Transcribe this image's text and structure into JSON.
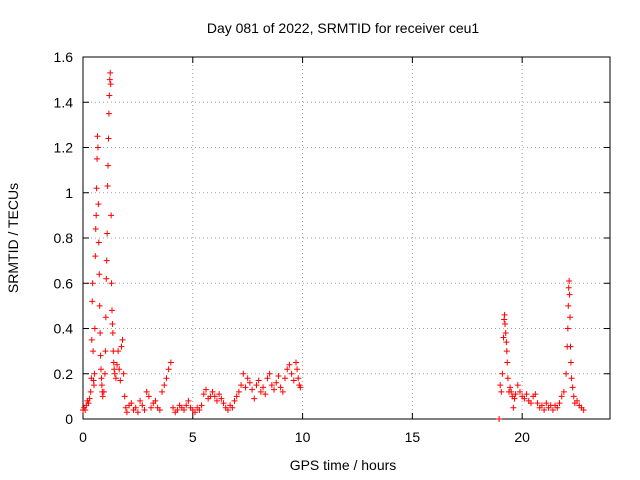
{
  "chart_data": {
    "type": "scatter",
    "title": "Day 081 of 2022, SRMTID for receiver ceu1",
    "xlabel": "GPS time / hours",
    "ylabel": "SRMTID / TECUs",
    "xlim": [
      0,
      24
    ],
    "ylim": [
      0,
      1.6
    ],
    "xticks": [
      0,
      5,
      10,
      15,
      20
    ],
    "xtick_labels": [
      "0",
      "5",
      "10",
      "15",
      "20"
    ],
    "yticks": [
      0,
      0.2,
      0.4,
      0.6,
      0.8,
      1.0,
      1.2,
      1.4,
      1.6
    ],
    "ytick_labels": [
      "0",
      "0.2",
      "0.4",
      "0.6",
      "0.8",
      "1",
      "1.2",
      "1.4",
      "1.6"
    ],
    "grid": true,
    "marker": "+",
    "color": "#ff0000",
    "series": [
      {
        "name": "ceu1",
        "points": [
          [
            0.0,
            0.04
          ],
          [
            0.05,
            0.05
          ],
          [
            0.1,
            0.04
          ],
          [
            0.15,
            0.06
          ],
          [
            0.2,
            0.08
          ],
          [
            0.25,
            0.07
          ],
          [
            0.3,
            0.09
          ],
          [
            0.35,
            0.12
          ],
          [
            0.38,
            0.18
          ],
          [
            0.4,
            0.35
          ],
          [
            0.42,
            0.52
          ],
          [
            0.44,
            0.6
          ],
          [
            0.46,
            0.3
          ],
          [
            0.48,
            0.17
          ],
          [
            0.5,
            0.15
          ],
          [
            0.52,
            0.2
          ],
          [
            0.54,
            0.4
          ],
          [
            0.56,
            0.72
          ],
          [
            0.58,
            0.84
          ],
          [
            0.6,
            0.9
          ],
          [
            0.62,
            1.02
          ],
          [
            0.64,
            1.15
          ],
          [
            0.66,
            1.25
          ],
          [
            0.68,
            1.2
          ],
          [
            0.7,
            0.95
          ],
          [
            0.72,
            0.78
          ],
          [
            0.74,
            0.64
          ],
          [
            0.76,
            0.5
          ],
          [
            0.78,
            0.38
          ],
          [
            0.8,
            0.28
          ],
          [
            0.82,
            0.22
          ],
          [
            0.84,
            0.18
          ],
          [
            0.86,
            0.15
          ],
          [
            0.88,
            0.12
          ],
          [
            0.9,
            0.1
          ],
          [
            0.95,
            0.12
          ],
          [
            1.0,
            0.2
          ],
          [
            1.02,
            0.3
          ],
          [
            1.04,
            0.45
          ],
          [
            1.06,
            0.62
          ],
          [
            1.08,
            0.7
          ],
          [
            1.1,
            0.82
          ],
          [
            1.12,
            1.03
          ],
          [
            1.14,
            1.12
          ],
          [
            1.16,
            1.24
          ],
          [
            1.18,
            1.35
          ],
          [
            1.2,
            1.43
          ],
          [
            1.22,
            1.5
          ],
          [
            1.24,
            1.53
          ],
          [
            1.26,
            1.48
          ],
          [
            1.28,
            0.9
          ],
          [
            1.3,
            0.6
          ],
          [
            1.32,
            0.48
          ],
          [
            1.34,
            0.42
          ],
          [
            1.36,
            0.38
          ],
          [
            1.38,
            0.3
          ],
          [
            1.4,
            0.25
          ],
          [
            1.42,
            0.22
          ],
          [
            1.45,
            0.2
          ],
          [
            1.5,
            0.18
          ],
          [
            1.55,
            0.24
          ],
          [
            1.6,
            0.3
          ],
          [
            1.65,
            0.22
          ],
          [
            1.7,
            0.17
          ],
          [
            1.75,
            0.32
          ],
          [
            1.8,
            0.35
          ],
          [
            1.85,
            0.2
          ],
          [
            1.9,
            0.1
          ],
          [
            1.95,
            0.05
          ],
          [
            2.0,
            0.03
          ],
          [
            2.1,
            0.06
          ],
          [
            2.2,
            0.07
          ],
          [
            2.3,
            0.04
          ],
          [
            2.4,
            0.05
          ],
          [
            2.5,
            0.03
          ],
          [
            2.6,
            0.08
          ],
          [
            2.7,
            0.06
          ],
          [
            2.8,
            0.04
          ],
          [
            2.9,
            0.12
          ],
          [
            3.0,
            0.1
          ],
          [
            3.1,
            0.05
          ],
          [
            3.2,
            0.07
          ],
          [
            3.3,
            0.08
          ],
          [
            3.4,
            0.05
          ],
          [
            3.5,
            0.04
          ],
          [
            3.6,
            0.12
          ],
          [
            3.7,
            0.15
          ],
          [
            3.8,
            0.18
          ],
          [
            3.9,
            0.22
          ],
          [
            4.0,
            0.25
          ],
          [
            4.1,
            0.05
          ],
          [
            4.2,
            0.03
          ],
          [
            4.3,
            0.04
          ],
          [
            4.4,
            0.06
          ],
          [
            4.5,
            0.05
          ],
          [
            4.6,
            0.04
          ],
          [
            4.7,
            0.06
          ],
          [
            4.8,
            0.08
          ],
          [
            4.9,
            0.05
          ],
          [
            5.0,
            0.04
          ],
          [
            5.1,
            0.03
          ],
          [
            5.2,
            0.05
          ],
          [
            5.3,
            0.04
          ],
          [
            5.4,
            0.06
          ],
          [
            5.5,
            0.11
          ],
          [
            5.6,
            0.13
          ],
          [
            5.7,
            0.09
          ],
          [
            5.8,
            0.1
          ],
          [
            5.9,
            0.12
          ],
          [
            6.0,
            0.1
          ],
          [
            6.1,
            0.08
          ],
          [
            6.2,
            0.11
          ],
          [
            6.3,
            0.09
          ],
          [
            6.4,
            0.07
          ],
          [
            6.5,
            0.05
          ],
          [
            6.6,
            0.04
          ],
          [
            6.7,
            0.06
          ],
          [
            6.8,
            0.05
          ],
          [
            6.9,
            0.08
          ],
          [
            7.0,
            0.1
          ],
          [
            7.1,
            0.12
          ],
          [
            7.2,
            0.15
          ],
          [
            7.3,
            0.2
          ],
          [
            7.4,
            0.14
          ],
          [
            7.5,
            0.18
          ],
          [
            7.6,
            0.16
          ],
          [
            7.7,
            0.13
          ],
          [
            7.8,
            0.09
          ],
          [
            7.9,
            0.15
          ],
          [
            8.0,
            0.17
          ],
          [
            8.1,
            0.12
          ],
          [
            8.2,
            0.14
          ],
          [
            8.3,
            0.11
          ],
          [
            8.4,
            0.18
          ],
          [
            8.5,
            0.2
          ],
          [
            8.6,
            0.15
          ],
          [
            8.7,
            0.13
          ],
          [
            8.8,
            0.16
          ],
          [
            8.9,
            0.19
          ],
          [
            9.0,
            0.14
          ],
          [
            9.1,
            0.12
          ],
          [
            9.2,
            0.18
          ],
          [
            9.3,
            0.22
          ],
          [
            9.4,
            0.24
          ],
          [
            9.5,
            0.2
          ],
          [
            9.6,
            0.17
          ],
          [
            9.7,
            0.25
          ],
          [
            9.75,
            0.22
          ],
          [
            9.8,
            0.18
          ],
          [
            9.85,
            0.15
          ],
          [
            9.9,
            0.14
          ],
          [
            18.95,
            0.0
          ],
          [
            19.0,
            0.15
          ],
          [
            19.05,
            0.12
          ],
          [
            19.1,
            0.2
          ],
          [
            19.15,
            0.36
          ],
          [
            19.18,
            0.44
          ],
          [
            19.2,
            0.46
          ],
          [
            19.22,
            0.42
          ],
          [
            19.25,
            0.38
          ],
          [
            19.28,
            0.34
          ],
          [
            19.3,
            0.3
          ],
          [
            19.32,
            0.25
          ],
          [
            19.35,
            0.18
          ],
          [
            19.4,
            0.12
          ],
          [
            19.45,
            0.14
          ],
          [
            19.5,
            0.12
          ],
          [
            19.55,
            0.1
          ],
          [
            19.6,
            0.05
          ],
          [
            19.65,
            0.09
          ],
          [
            19.7,
            0.11
          ],
          [
            19.8,
            0.15
          ],
          [
            19.9,
            0.12
          ],
          [
            20.0,
            0.1
          ],
          [
            20.1,
            0.09
          ],
          [
            20.2,
            0.11
          ],
          [
            20.3,
            0.08
          ],
          [
            20.4,
            0.07
          ],
          [
            20.5,
            0.1
          ],
          [
            20.6,
            0.11
          ],
          [
            20.7,
            0.07
          ],
          [
            20.8,
            0.05
          ],
          [
            20.9,
            0.06
          ],
          [
            21.0,
            0.04
          ],
          [
            21.1,
            0.07
          ],
          [
            21.2,
            0.05
          ],
          [
            21.3,
            0.06
          ],
          [
            21.4,
            0.04
          ],
          [
            21.5,
            0.06
          ],
          [
            21.6,
            0.05
          ],
          [
            21.7,
            0.07
          ],
          [
            21.8,
            0.1
          ],
          [
            21.9,
            0.12
          ],
          [
            22.0,
            0.2
          ],
          [
            22.05,
            0.32
          ],
          [
            22.08,
            0.4
          ],
          [
            22.1,
            0.5
          ],
          [
            22.12,
            0.58
          ],
          [
            22.14,
            0.61
          ],
          [
            22.16,
            0.55
          ],
          [
            22.18,
            0.45
          ],
          [
            22.2,
            0.32
          ],
          [
            22.22,
            0.25
          ],
          [
            22.25,
            0.18
          ],
          [
            22.3,
            0.14
          ],
          [
            22.35,
            0.1
          ],
          [
            22.4,
            0.07
          ],
          [
            22.5,
            0.08
          ],
          [
            22.6,
            0.06
          ],
          [
            22.7,
            0.05
          ],
          [
            22.8,
            0.04
          ]
        ]
      }
    ]
  }
}
